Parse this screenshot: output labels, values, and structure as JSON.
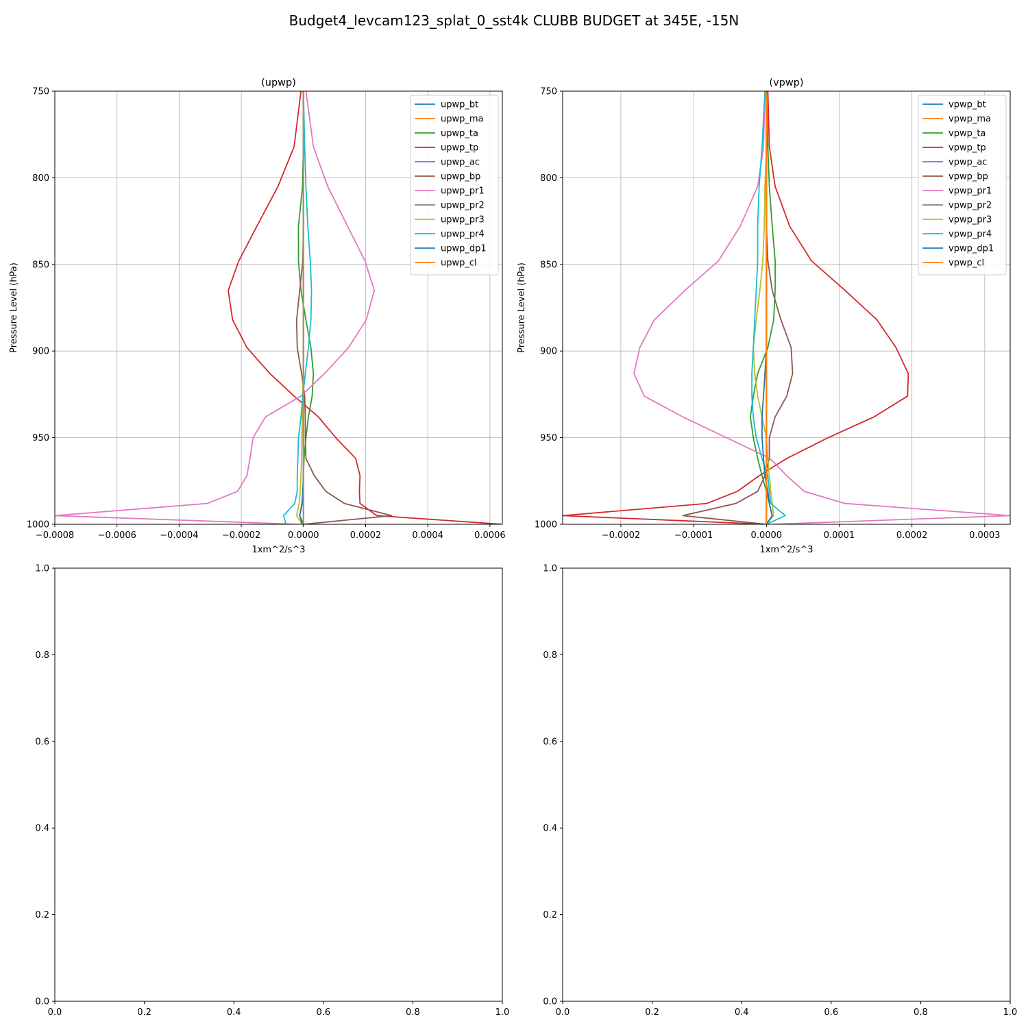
{
  "suptitle": "Budget4_levcam123_splat_0_sst4k CLUBB BUDGET at 345E, -15N",
  "colors": {
    "bt": "#1f77b4",
    "ma": "#ff7f0e",
    "ta": "#2ca02c",
    "tp": "#d62728",
    "ac": "#9467bd",
    "bp": "#8c564b",
    "pr1": "#e377c2",
    "pr2": "#7f7f7f",
    "pr3": "#bcbd22",
    "pr4": "#17becf",
    "dp1": "#1f77b4",
    "cl": "#ff7f0e",
    "grid": "#b0b0b0"
  },
  "chart_data": [
    {
      "type": "line",
      "title": "(upwp)",
      "xlabel": "1xm^2/s^3",
      "ylabel": "Pressure Level (hPa)",
      "xlim": [
        -0.0008,
        0.00064
      ],
      "ylim": [
        1000,
        750
      ],
      "xticks": [
        -0.0008,
        -0.0006,
        -0.0004,
        -0.0002,
        0.0,
        0.0002,
        0.0004,
        0.0006
      ],
      "xtick_labels": [
        "−0.0008",
        "−0.0006",
        "−0.0004",
        "−0.0002",
        "0.0000",
        "0.0002",
        "0.0004",
        "0.0006"
      ],
      "yticks": [
        750,
        800,
        850,
        900,
        950,
        1000
      ],
      "ytick_labels": [
        "750",
        "800",
        "850",
        "900",
        "950",
        "1000"
      ],
      "grid": true,
      "legend": "upper right",
      "levels": [
        750,
        782,
        805,
        828,
        848,
        865,
        882,
        898,
        913,
        926,
        938,
        950,
        962,
        972,
        981,
        988,
        995,
        1000
      ],
      "series": [
        {
          "name": "upwp_bt",
          "key": "bt",
          "values": [
            0,
            0,
            0,
            0,
            0,
            0,
            0,
            0,
            0,
            0,
            0,
            0,
            0,
            0,
            0,
            0,
            0,
            0
          ]
        },
        {
          "name": "upwp_ma",
          "key": "ma",
          "values": [
            0,
            0,
            0,
            0,
            0,
            0,
            0,
            0,
            0,
            0,
            0,
            0,
            0,
            0,
            0,
            0,
            0,
            0
          ]
        },
        {
          "name": "upwp_ta",
          "key": "ta",
          "values": [
            0,
            0,
            -3e-06,
            -1.6e-05,
            -1.6e-05,
            -8e-06,
            8e-06,
            2.4e-05,
            3.2e-05,
            2.8e-05,
            1.6e-05,
            8e-06,
            2e-06,
            0,
            -2e-06,
            -5e-06,
            -1.2e-05,
            0
          ]
        },
        {
          "name": "upwp_tp",
          "key": "tp",
          "values": [
            -8e-06,
            -3e-05,
            -8.2e-05,
            -0.00015,
            -0.000208,
            -0.000242,
            -0.000228,
            -0.000182,
            -0.000108,
            -3e-05,
            4.8e-05,
            0.000104,
            0.000168,
            0.000182,
            0.00018,
            0.000182,
            0.000236,
            0.00064
          ]
        },
        {
          "name": "upwp_ac",
          "key": "ac",
          "values": [
            0,
            0,
            0,
            0,
            0,
            0,
            0,
            0,
            0,
            0,
            0,
            0,
            0,
            0,
            0,
            0,
            0,
            0
          ]
        },
        {
          "name": "upwp_bp",
          "key": "bp",
          "values": [
            0,
            0,
            0,
            0,
            -2e-06,
            -1.2e-05,
            -2.2e-05,
            -2e-05,
            -6e-06,
            4e-06,
            6e-06,
            6e-06,
            8e-06,
            3.5e-05,
            7.2e-05,
            0.000132,
            0.000284,
            0
          ]
        },
        {
          "name": "upwp_pr1",
          "key": "pr1",
          "values": [
            8e-06,
            3.2e-05,
            7.8e-05,
            0.000142,
            0.000198,
            0.000228,
            0.000202,
            0.000145,
            6.8e-05,
            -8e-06,
            -0.000122,
            -0.000162,
            -0.000172,
            -0.000182,
            -0.000212,
            -0.00031,
            -0.0008,
            -2e-05
          ]
        },
        {
          "name": "upwp_pr2",
          "key": "pr2",
          "values": [
            0,
            0,
            0,
            0,
            0,
            0,
            0,
            0,
            0,
            0,
            0,
            0,
            0,
            0,
            0,
            0,
            0,
            0
          ]
        },
        {
          "name": "upwp_pr3",
          "key": "pr3",
          "values": [
            0,
            0,
            0,
            0,
            0,
            0,
            0,
            0,
            0,
            -3e-06,
            -4e-06,
            -5e-06,
            -6e-06,
            -8e-06,
            -1e-05,
            -1.4e-05,
            -2.2e-05,
            -4e-06
          ]
        },
        {
          "name": "upwp_pr4",
          "key": "pr4",
          "values": [
            0,
            4e-06,
            8e-06,
            1.4e-05,
            2.2e-05,
            2.6e-05,
            2.4e-05,
            1.6e-05,
            6e-06,
            -2e-06,
            -8e-06,
            -1.6e-05,
            -1.8e-05,
            -2e-05,
            -2e-05,
            -2.8e-05,
            -6.4e-05,
            -5.6e-05
          ]
        },
        {
          "name": "upwp_dp1",
          "key": "dp1",
          "values": [
            0,
            0,
            0,
            0,
            0,
            0,
            0,
            0,
            0,
            0,
            0,
            0,
            0,
            0,
            -2e-06,
            -4e-06,
            -1.2e-05,
            -4e-06
          ]
        },
        {
          "name": "upwp_cl",
          "key": "cl",
          "values": [
            0,
            0,
            0,
            0,
            0,
            0,
            0,
            0,
            0,
            0,
            0,
            0,
            0,
            0,
            0,
            0,
            0,
            0
          ]
        }
      ]
    },
    {
      "type": "line",
      "title": "(vpwp)",
      "xlabel": "1xm^2/s^3",
      "ylabel": "Pressure Level (hPa)",
      "xlim": [
        -0.00028,
        0.000335
      ],
      "ylim": [
        1000,
        750
      ],
      "xticks": [
        -0.0002,
        -0.0001,
        0.0,
        0.0001,
        0.0002,
        0.0003
      ],
      "xtick_labels": [
        "−0.0002",
        "−0.0001",
        "0.0000",
        "0.0001",
        "0.0002",
        "0.0003"
      ],
      "yticks": [
        750,
        800,
        850,
        900,
        950,
        1000
      ],
      "ytick_labels": [
        "750",
        "800",
        "850",
        "900",
        "950",
        "1000"
      ],
      "grid": true,
      "legend": "upper right",
      "levels": [
        750,
        782,
        805,
        828,
        848,
        865,
        882,
        898,
        913,
        926,
        938,
        950,
        962,
        972,
        981,
        988,
        995,
        1000
      ],
      "series": [
        {
          "name": "vpwp_bt",
          "key": "bt",
          "values": [
            0,
            0,
            0,
            0,
            0,
            0,
            0,
            0,
            0,
            0,
            0,
            0,
            0,
            0,
            0,
            0,
            0,
            0
          ]
        },
        {
          "name": "vpwp_ma",
          "key": "ma",
          "values": [
            0,
            0,
            0,
            0,
            0,
            0,
            0,
            0,
            0,
            0,
            0,
            0,
            0,
            0,
            0,
            0,
            0,
            0
          ]
        },
        {
          "name": "vpwp_ta",
          "key": "ta",
          "values": [
            0,
            2e-06,
            4e-06,
            8e-06,
            1.2e-05,
            1.2e-05,
            1e-05,
            2e-06,
            -1.2e-05,
            -1.8e-05,
            -2.2e-05,
            -1.8e-05,
            -1.2e-05,
            -6e-06,
            0,
            4e-06,
            8e-06,
            0
          ]
        },
        {
          "name": "vpwp_tp",
          "key": "tp",
          "values": [
            2e-06,
            4e-06,
            1.2e-05,
            3.2e-05,
            6.2e-05,
            0.000108,
            0.000152,
            0.000178,
            0.000195,
            0.000194,
            0.000148,
            8.5e-05,
            2.8e-05,
            -1e-05,
            -4e-05,
            -8.2e-05,
            -0.00028,
            0
          ]
        },
        {
          "name": "vpwp_ac",
          "key": "ac",
          "values": [
            0,
            0,
            0,
            0,
            0,
            0,
            0,
            0,
            0,
            0,
            0,
            0,
            0,
            0,
            0,
            0,
            0,
            0
          ]
        },
        {
          "name": "vpwp_bp",
          "key": "bp",
          "values": [
            0,
            0,
            0,
            0,
            2e-06,
            8e-06,
            2e-05,
            3.4e-05,
            3.6e-05,
            2.8e-05,
            1.2e-05,
            4e-06,
            4e-06,
            -2e-06,
            -1.2e-05,
            -4.2e-05,
            -0.000115,
            0
          ]
        },
        {
          "name": "vpwp_pr1",
          "key": "pr1",
          "values": [
            -2e-06,
            -4e-06,
            -1.2e-05,
            -3.6e-05,
            -6.6e-05,
            -0.000112,
            -0.000154,
            -0.000174,
            -0.000182,
            -0.000168,
            -0.000115,
            -5.5e-05,
            5e-06,
            2.8e-05,
            5.2e-05,
            0.000108,
            0.000335,
            8e-06
          ]
        },
        {
          "name": "vpwp_pr2",
          "key": "pr2",
          "values": [
            0,
            0,
            0,
            0,
            0,
            0,
            0,
            0,
            0,
            0,
            0,
            0,
            0,
            0,
            0,
            0,
            0,
            0
          ]
        },
        {
          "name": "vpwp_pr3",
          "key": "pr3",
          "values": [
            0,
            0,
            -2e-06,
            -3e-06,
            -5e-06,
            -9e-06,
            -1.4e-05,
            -1.8e-05,
            -1.6e-05,
            -1.2e-05,
            -6e-06,
            0,
            2e-06,
            4e-06,
            6e-06,
            8e-06,
            1e-05,
            0
          ]
        },
        {
          "name": "vpwp_pr4",
          "key": "pr4",
          "values": [
            -2e-06,
            -6e-06,
            -1e-05,
            -1.2e-05,
            -1.2e-05,
            -1.4e-05,
            -1.6e-05,
            -1.8e-05,
            -2e-05,
            -2e-05,
            -1.8e-05,
            -1.4e-05,
            -6e-06,
            2e-06,
            4e-06,
            6e-06,
            2.6e-05,
            0
          ]
        },
        {
          "name": "vpwp_dp1",
          "key": "dp1",
          "values": [
            0,
            0,
            0,
            0,
            0,
            0,
            0,
            0,
            -2e-06,
            -4e-06,
            -6e-06,
            -6e-06,
            -4e-06,
            -2e-06,
            2e-06,
            4e-06,
            8e-06,
            0
          ]
        },
        {
          "name": "vpwp_cl",
          "key": "cl",
          "values": [
            0,
            0,
            0,
            0,
            0,
            0,
            0,
            0,
            0,
            0,
            0,
            0,
            0,
            0,
            0,
            0,
            0,
            0
          ]
        }
      ]
    },
    {
      "type": "line",
      "title": "",
      "xlabel": "",
      "ylabel": "",
      "xlim": [
        0,
        1
      ],
      "ylim": [
        0,
        1
      ],
      "xticks": [
        0,
        0.2,
        0.4,
        0.6,
        0.8,
        1.0
      ],
      "xtick_labels": [
        "0.0",
        "0.2",
        "0.4",
        "0.6",
        "0.8",
        "1.0"
      ],
      "yticks": [
        0,
        0.2,
        0.4,
        0.6,
        0.8,
        1.0
      ],
      "ytick_labels": [
        "0.0",
        "0.2",
        "0.4",
        "0.6",
        "0.8",
        "1.0"
      ],
      "grid": false,
      "series": []
    },
    {
      "type": "line",
      "title": "",
      "xlabel": "",
      "ylabel": "",
      "xlim": [
        0,
        1
      ],
      "ylim": [
        0,
        1
      ],
      "xticks": [
        0,
        0.2,
        0.4,
        0.6,
        0.8,
        1.0
      ],
      "xtick_labels": [
        "0.0",
        "0.2",
        "0.4",
        "0.6",
        "0.8",
        "1.0"
      ],
      "yticks": [
        0,
        0.2,
        0.4,
        0.6,
        0.8,
        1.0
      ],
      "ytick_labels": [
        "0.0",
        "0.2",
        "0.4",
        "0.6",
        "0.8",
        "1.0"
      ],
      "grid": false,
      "series": []
    }
  ]
}
